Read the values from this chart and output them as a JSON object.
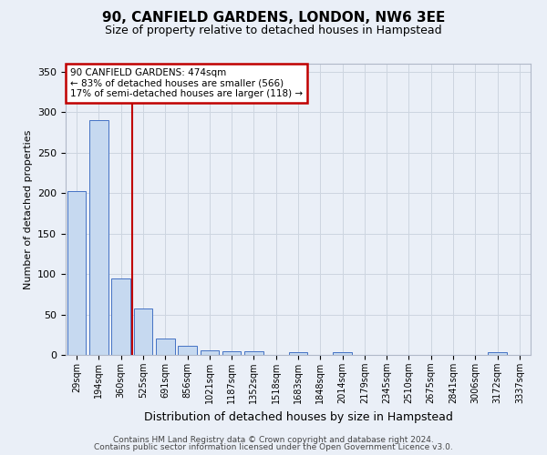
{
  "title": "90, CANFIELD GARDENS, LONDON, NW6 3EE",
  "subtitle": "Size of property relative to detached houses in Hampstead",
  "xlabel": "Distribution of detached houses by size in Hampstead",
  "ylabel": "Number of detached properties",
  "categories": [
    "29sqm",
    "194sqm",
    "360sqm",
    "525sqm",
    "691sqm",
    "856sqm",
    "1021sqm",
    "1187sqm",
    "1352sqm",
    "1518sqm",
    "1683sqm",
    "1848sqm",
    "2014sqm",
    "2179sqm",
    "2345sqm",
    "2510sqm",
    "2675sqm",
    "2841sqm",
    "3006sqm",
    "3172sqm",
    "3337sqm"
  ],
  "values": [
    203,
    290,
    95,
    57,
    20,
    11,
    6,
    5,
    4,
    0,
    3,
    0,
    3,
    0,
    0,
    0,
    0,
    0,
    0,
    3,
    0
  ],
  "bar_color": "#c6d9f0",
  "bar_edge_color": "#4472c4",
  "vline_x_index": 2.5,
  "vline_color": "#c00000",
  "annotation_text": "90 CANFIELD GARDENS: 474sqm\n← 83% of detached houses are smaller (566)\n17% of semi-detached houses are larger (118) →",
  "annotation_box_color": "#c00000",
  "ylim": [
    0,
    360
  ],
  "yticks": [
    0,
    50,
    100,
    150,
    200,
    250,
    300,
    350
  ],
  "grid_color": "#cdd5e0",
  "footer1": "Contains HM Land Registry data © Crown copyright and database right 2024.",
  "footer2": "Contains public sector information licensed under the Open Government Licence v3.0.",
  "background_color": "#eaeff7",
  "plot_background": "#eaeff7",
  "title_fontsize": 11,
  "subtitle_fontsize": 9,
  "ylabel_fontsize": 8,
  "xlabel_fontsize": 9,
  "tick_fontsize": 7,
  "footer_fontsize": 6.5
}
